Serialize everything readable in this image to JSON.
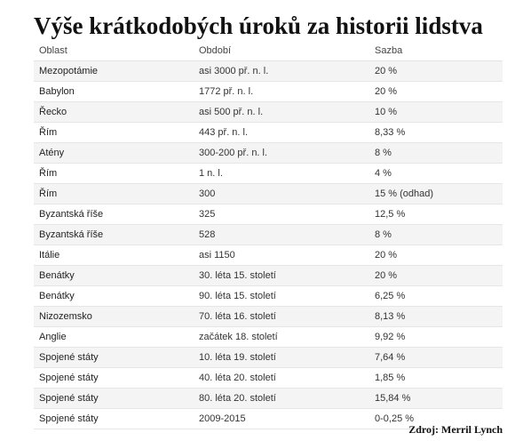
{
  "title": "Výše krátkodobých úroků za historii lidstva",
  "columns": [
    "Oblast",
    "Období",
    "Sazba"
  ],
  "rows": [
    [
      "Mezopotámie",
      "asi 3000 př. n. l.",
      "20 %"
    ],
    [
      "Babylon",
      "1772 př. n. l.",
      "20 %"
    ],
    [
      "Řecko",
      "asi 500 př. n. l.",
      "10 %"
    ],
    [
      "Řím",
      "443 př. n. l.",
      "8,33 %"
    ],
    [
      "Atény",
      "300-200 př. n. l.",
      "8 %"
    ],
    [
      "Řím",
      "1 n. l.",
      "4 %"
    ],
    [
      "Řím",
      "300",
      "15 % (odhad)"
    ],
    [
      "Byzantská říše",
      "325",
      "12,5 %"
    ],
    [
      "Byzantská říše",
      "528",
      "8 %"
    ],
    [
      "Itálie",
      "asi 1150",
      "20 %"
    ],
    [
      "Benátky",
      "30. léta 15. století",
      "20 %"
    ],
    [
      "Benátky",
      "90. léta 15. století",
      "6,25 %"
    ],
    [
      "Nizozemsko",
      "70. léta 16. století",
      "8,13 %"
    ],
    [
      "Anglie",
      "začátek 18. století",
      "9,92 %"
    ],
    [
      "Spojené státy",
      "10. léta 19. století",
      "7,64 %"
    ],
    [
      "Spojené státy",
      "40. léta 20. století",
      "1,85 %"
    ],
    [
      "Spojené státy",
      "80. léta 20. století",
      "15,84 %"
    ],
    [
      "Spojené státy",
      "2009-2015",
      "0-0,25 %"
    ]
  ],
  "source": "Zdroj: Merril Lynch"
}
